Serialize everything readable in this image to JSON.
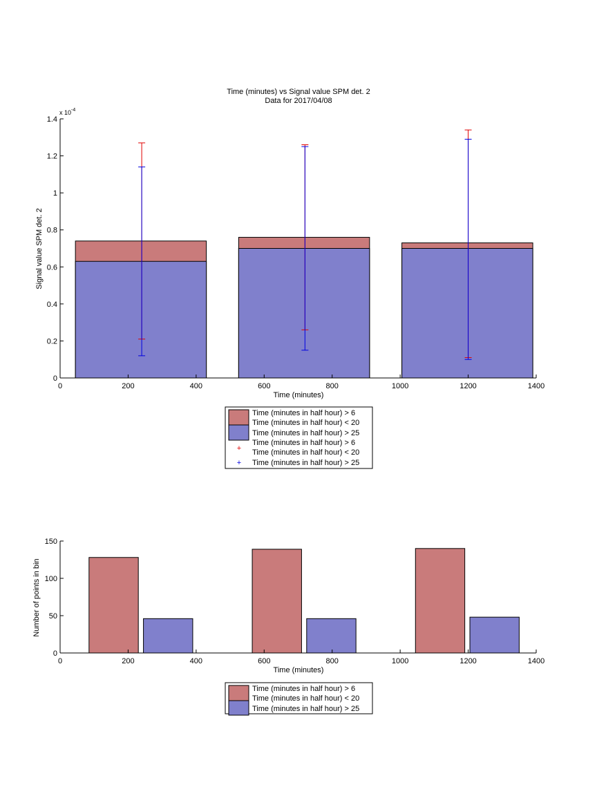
{
  "colors": {
    "red_bar": "#c97b7b",
    "blue_bar": "#8080cc",
    "red_err": "#e00000",
    "blue_err": "#0000e0",
    "axis": "#000000"
  },
  "chart_data": [
    {
      "type": "bar",
      "title": "Time (minutes) vs Signal value SPM det. 2",
      "subtitle": "Data for 2017/04/08",
      "xlabel": "Time (minutes)",
      "ylabel": "Signal value SPM det. 2",
      "exponent_label": "x 10",
      "exponent_power": "-4",
      "xlim": [
        0,
        1400
      ],
      "ylim": [
        0,
        1.4
      ],
      "xticks": [
        "0",
        "200",
        "400",
        "600",
        "800",
        "1000",
        "1200",
        "1400"
      ],
      "yticks": [
        "0",
        "0.2",
        "0.4",
        "0.6",
        "0.8",
        "1",
        "1.2",
        "1.4"
      ],
      "bins": [
        {
          "x0": 45,
          "x1": 430
        },
        {
          "x0": 525,
          "x1": 910
        },
        {
          "x0": 1005,
          "x1": 1390
        }
      ],
      "series": [
        {
          "name": "Time (minutes in half hour) > 6 Time (minutes in half hour) < 20",
          "values": [
            0.74,
            0.76,
            0.73
          ],
          "err_x": [
            240,
            720,
            1200
          ],
          "err_low": [
            0.21,
            0.26,
            0.11
          ],
          "err_high": [
            1.27,
            1.26,
            1.34
          ]
        },
        {
          "name": "Time (minutes in half hour) > 25",
          "values": [
            0.63,
            0.7,
            0.7
          ],
          "err_x": [
            240,
            720,
            1200
          ],
          "err_low": [
            0.12,
            0.15,
            0.1
          ],
          "err_high": [
            1.14,
            1.25,
            1.29
          ]
        }
      ],
      "legend": {
        "placement": "below",
        "entries": [
          {
            "line1": "Time (minutes in half hour) > 6",
            "line2": "Time (minutes in half hour) < 20"
          },
          {
            "line1": "Time (minutes in half hour) > 25",
            "line2": ""
          },
          {
            "line1": "Time (minutes in half hour) > 6",
            "line2": "Time (minutes in half hour) < 20"
          },
          {
            "line1": "Time (minutes in half hour) > 25",
            "line2": ""
          }
        ]
      }
    },
    {
      "type": "bar",
      "xlabel": "Time (minutes)",
      "ylabel": "Number of points in bin",
      "xlim": [
        0,
        1400
      ],
      "ylim": [
        0,
        150
      ],
      "xticks": [
        "0",
        "200",
        "400",
        "600",
        "800",
        "1000",
        "1200",
        "1400"
      ],
      "yticks": [
        "0",
        "50",
        "100",
        "150"
      ],
      "series": [
        {
          "name": "Time (minutes in half hour) > 6 Time (minutes in half hour) < 20",
          "x0": [
            85,
            565,
            1045
          ],
          "x1": [
            230,
            710,
            1190
          ],
          "values": [
            128,
            139,
            140
          ]
        },
        {
          "name": "Time (minutes in half hour) > 25",
          "x0": [
            245,
            725,
            1205
          ],
          "x1": [
            390,
            870,
            1350
          ],
          "values": [
            46,
            46,
            48
          ]
        }
      ],
      "legend": {
        "placement": "below",
        "entries": [
          {
            "line1": "Time (minutes in half hour) > 6",
            "line2": "Time (minutes in half hour) < 20"
          },
          {
            "line1": "Time (minutes in half hour) > 25",
            "line2": ""
          }
        ]
      }
    }
  ]
}
